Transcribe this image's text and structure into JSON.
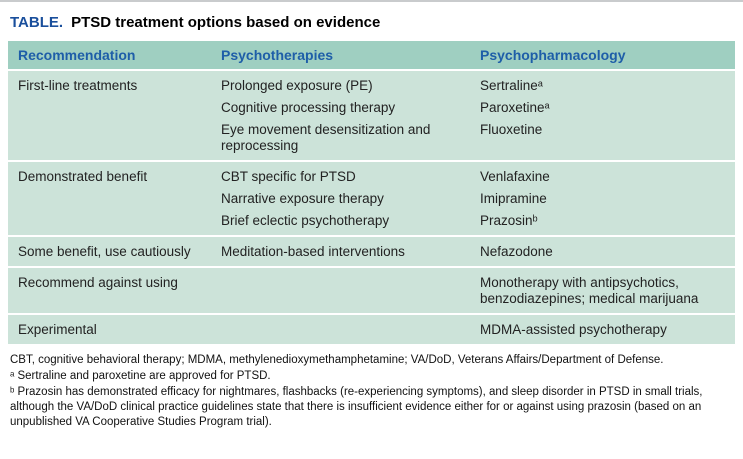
{
  "title": {
    "label": "TABLE.",
    "text": "PTSD treatment options based on evidence"
  },
  "table": {
    "columns": [
      "Recommendation",
      "Psychotherapies",
      "Psychopharmacology"
    ],
    "rows": [
      {
        "recommendation": "First-line treatments",
        "psychotherapies": [
          "Prolonged exposure (PE)",
          "Cognitive processing therapy",
          "Eye movement desensitization and reprocessing"
        ],
        "psychopharmacology": [
          "Sertralineᵃ",
          "Paroxetineᵃ",
          "Fluoxetine"
        ]
      },
      {
        "recommendation": "Demonstrated benefit",
        "psychotherapies": [
          "CBT specific for PTSD",
          "Narrative exposure therapy",
          "Brief eclectic psychotherapy"
        ],
        "psychopharmacology": [
          "Venlafaxine",
          "Imipramine",
          "Prazosinᵇ"
        ]
      },
      {
        "recommendation": "Some benefit, use cautiously",
        "psychotherapies": [
          "Meditation-based interventions"
        ],
        "psychopharmacology": [
          "Nefazodone"
        ]
      },
      {
        "recommendation": "Recommend against using",
        "psychotherapies": [],
        "psychopharmacology": [
          "Monotherapy with antipsychotics, benzodiazepines; medical marijuana"
        ]
      },
      {
        "recommendation": "Experimental",
        "psychotherapies": [],
        "psychopharmacology": [
          "MDMA-assisted psychotherapy"
        ]
      }
    ]
  },
  "footnotes": [
    "CBT, cognitive behavioral therapy; MDMA, methylenedioxymethamphetamine; VA/DoD, Veterans Affairs/Department of Defense.",
    "ᵃ Sertraline and paroxetine are approved for PTSD.",
    "ᵇ Prazosin has demonstrated efficacy for nightmares, flashbacks (re-experiencing symptoms), and sleep disorder in PTSD in small trials, although the VA/DoD clinical practice guidelines state that there is insufficient evidence either for or against using prazosin (based on an unpublished VA Cooperative Studies Program trial)."
  ],
  "colors": {
    "header_bg": "#9fcfc1",
    "row_bg": "#cce3d9",
    "header_text": "#1e5ea8",
    "title_label": "#1a4f9c"
  }
}
